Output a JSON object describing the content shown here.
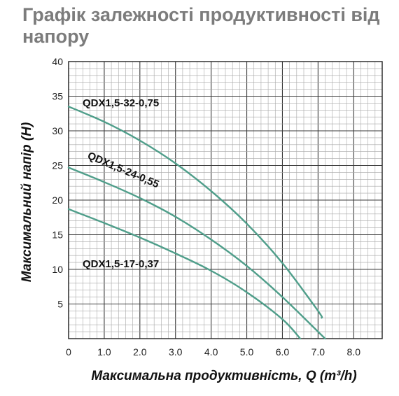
{
  "title": "Графік залежності продуктивності від напору",
  "chart_data": {
    "type": "line",
    "xlabel": "Максимальна продуктивність, Q (m³/h)",
    "ylabel": "Максимальний напір (Н)",
    "xlim": [
      0,
      8.8
    ],
    "ylim": [
      0,
      40
    ],
    "x_ticks": [
      "0",
      "1.0",
      "2.0",
      "3.0",
      "4.0",
      "5.0",
      "6.0",
      "7.0",
      "8.0"
    ],
    "y_ticks": [
      "5",
      "10",
      "15",
      "20",
      "25",
      "30",
      "35",
      "40"
    ],
    "grid": true,
    "line_color": "#4f9e8a",
    "series": [
      {
        "name": "QDX1,5-32-0,75",
        "x": [
          0,
          1.0,
          2.0,
          3.0,
          4.0,
          5.0,
          6.0,
          7.0,
          7.1
        ],
        "y": [
          33.5,
          31.3,
          28.6,
          25.3,
          21.3,
          16.6,
          10.9,
          4.0,
          3.0
        ]
      },
      {
        "name": "QDX1,5-24-0,55",
        "x": [
          0,
          1.0,
          2.0,
          3.0,
          4.0,
          5.0,
          6.0,
          7.0,
          7.2
        ],
        "y": [
          24.7,
          22.6,
          20.3,
          17.6,
          14.3,
          10.5,
          6.0,
          1.0,
          0
        ]
      },
      {
        "name": "QDX1,5-17-0,37",
        "x": [
          0,
          1.0,
          2.0,
          3.0,
          4.0,
          5.0,
          6.0,
          6.5
        ],
        "y": [
          18.7,
          16.7,
          14.6,
          12.3,
          9.8,
          6.7,
          2.8,
          0
        ]
      }
    ]
  }
}
